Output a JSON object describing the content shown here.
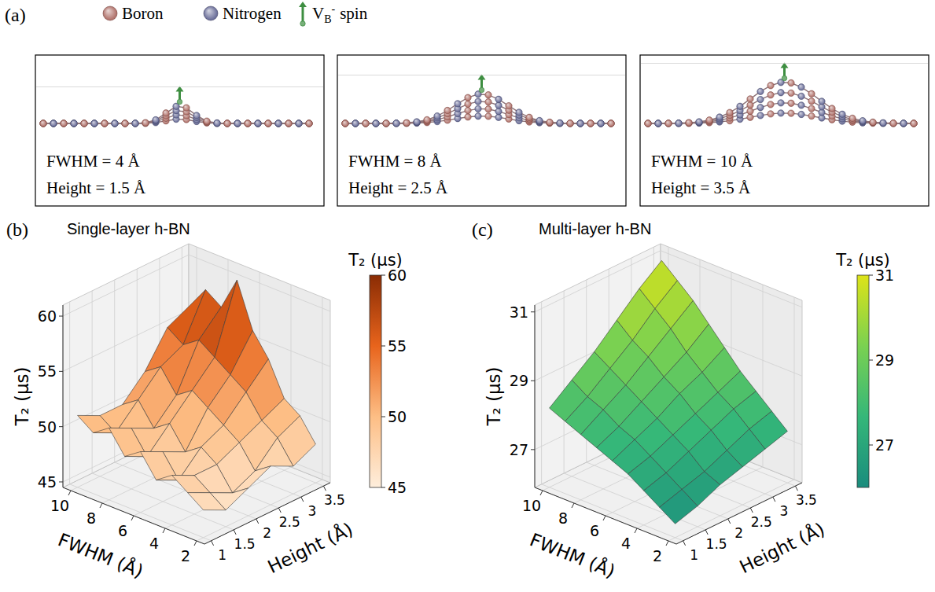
{
  "figure": {
    "panel_a": {
      "letter": "(a)",
      "legend": [
        {
          "label": "Boron",
          "color": "#a8625a"
        },
        {
          "label": "Nitrogen",
          "color": "#5a5e8e"
        },
        {
          "label": {
            "main": "V",
            "sub": "B",
            "sup": "-",
            "text": "spin"
          },
          "color": "#3e8e41"
        }
      ],
      "panels": [
        {
          "fwhm_label": "FWHM = 4 Å",
          "height_label": "Height = 1.5 Å",
          "fwhm": 4,
          "height": 1.5
        },
        {
          "fwhm_label": "FWHM =  8 Å",
          "height_label": "Height = 2.5 Å",
          "fwhm": 8,
          "height": 2.5
        },
        {
          "fwhm_label": "FWHM =  10 Å",
          "height_label": "Height = 3.5 Å",
          "fwhm": 10,
          "height": 3.5
        }
      ]
    }
  },
  "chart_data": [
    {
      "type": "surface",
      "letter": "(b)",
      "title": "Single-layer h-BN",
      "x_label": "FWHM (Å)",
      "y_label": "Height (Å)",
      "z_label": "T₂ (μs)",
      "x": [
        2,
        3,
        4,
        5,
        6,
        7,
        8,
        9,
        10
      ],
      "y": [
        1,
        1.5,
        2,
        2.5,
        3,
        3.5
      ],
      "z": [
        [
          47,
          48,
          49,
          48,
          50,
          49,
          51,
          50,
          51
        ],
        [
          46,
          47,
          48,
          47,
          49,
          48,
          50,
          49,
          50
        ],
        [
          47,
          46,
          48,
          49,
          48,
          50,
          49,
          51,
          50
        ],
        [
          48,
          47,
          49,
          50,
          51,
          52,
          51,
          53,
          52
        ],
        [
          47,
          49,
          50,
          52,
          53,
          54,
          55,
          54,
          55
        ],
        [
          48,
          50,
          51,
          54,
          56,
          60,
          57,
          58,
          56
        ]
      ],
      "xlim": [
        1.5,
        10.5
      ],
      "xticks": [
        2,
        4,
        6,
        8,
        10
      ],
      "ylim": [
        0.85,
        3.65
      ],
      "yticks": [
        1,
        1.5,
        2,
        2.5,
        3,
        3.5
      ],
      "zlim": [
        44.5,
        61
      ],
      "zticks": [
        45,
        50,
        55,
        60
      ],
      "grid": true,
      "colorbar": {
        "label": "T₂ (μs)",
        "range": [
          45,
          60
        ],
        "ticks": [
          45,
          50,
          55,
          60
        ],
        "colors": [
          "#feeedc",
          "#fdbe85",
          "#e8641c",
          "#8a2c04"
        ]
      }
    },
    {
      "type": "surface",
      "letter": "(c)",
      "title": "Multi-layer h-BN",
      "x_label": "FWHM (Å)",
      "y_label": "Height (Å)",
      "z_label": "T₂ (μs)",
      "x": [
        2,
        3,
        4,
        5,
        6,
        7,
        8,
        9,
        10
      ],
      "y": [
        1,
        1.5,
        2,
        2.5,
        3,
        3.5
      ],
      "z": [
        [
          26.3,
          26.6,
          26.9,
          27.2,
          27.4,
          27.6,
          27.8,
          28.0,
          28.2
        ],
        [
          26.5,
          26.8,
          27.1,
          27.4,
          27.7,
          27.9,
          28.2,
          28.4,
          28.7
        ],
        [
          26.8,
          27.0,
          27.4,
          27.7,
          28.0,
          28.3,
          28.6,
          28.9,
          29.2
        ],
        [
          27.0,
          27.3,
          27.7,
          28.0,
          28.4,
          28.7,
          29.1,
          29.4,
          29.8
        ],
        [
          27.2,
          27.6,
          28.0,
          28.3,
          28.7,
          29.1,
          29.6,
          30.0,
          30.4
        ],
        [
          27.4,
          27.8,
          28.2,
          28.6,
          29.1,
          29.6,
          30.1,
          30.5,
          30.9
        ]
      ],
      "xlim": [
        1.5,
        10.5
      ],
      "xticks": [
        2,
        4,
        6,
        8,
        10
      ],
      "ylim": [
        0.85,
        3.65
      ],
      "yticks": [
        1,
        1.5,
        2,
        2.5,
        3,
        3.5
      ],
      "zlim": [
        25.9,
        31.2
      ],
      "zticks": [
        27,
        29,
        31
      ],
      "grid": true,
      "colorbar": {
        "label": "T₂ (μs)",
        "range": [
          26,
          31
        ],
        "ticks": [
          27,
          29,
          31
        ],
        "colors": [
          "#1a8c7d",
          "#35b779",
          "#7ad151",
          "#dde318"
        ]
      }
    }
  ]
}
